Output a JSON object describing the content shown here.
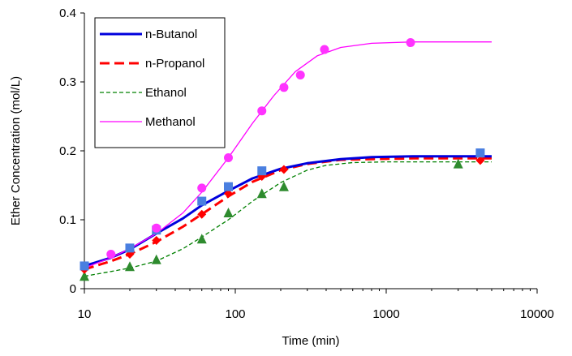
{
  "chart_data": {
    "type": "line",
    "xlabel": "Time (min)",
    "ylabel": "Ether Concentration (mol/L)",
    "xscale": "log",
    "xlim": [
      10,
      10000
    ],
    "ylim": [
      0,
      0.4
    ],
    "xticks": [
      "10",
      "100",
      "1000",
      "10000"
    ],
    "yticks": [
      "0",
      "0.1",
      "0.2",
      "0.3",
      "0.4"
    ],
    "grid": false,
    "legend_position": "top-left",
    "series": [
      {
        "name": "n-Butanol",
        "color": "#0000dd",
        "line_style": "solid-thick",
        "marker": "square",
        "marker_color": "#4a7fe0",
        "points": [
          [
            10,
            0.033
          ],
          [
            20,
            0.059
          ],
          [
            30,
            0.085
          ],
          [
            60,
            0.127
          ],
          [
            90,
            0.148
          ],
          [
            150,
            0.171
          ],
          [
            4200,
            0.197
          ]
        ],
        "curve": [
          [
            10,
            0.033
          ],
          [
            15,
            0.045
          ],
          [
            20,
            0.057
          ],
          [
            30,
            0.08
          ],
          [
            45,
            0.102
          ],
          [
            60,
            0.121
          ],
          [
            90,
            0.142
          ],
          [
            130,
            0.16
          ],
          [
            200,
            0.174
          ],
          [
            300,
            0.182
          ],
          [
            500,
            0.188
          ],
          [
            800,
            0.191
          ],
          [
            1500,
            0.192
          ],
          [
            3000,
            0.192
          ],
          [
            5000,
            0.192
          ]
        ]
      },
      {
        "name": "n-Propanol",
        "color": "#ff0000",
        "line_style": "dashed-thick",
        "marker": "diamond",
        "marker_color": "#ff0000",
        "points": [
          [
            10,
            0.028
          ],
          [
            20,
            0.05
          ],
          [
            30,
            0.07
          ],
          [
            60,
            0.108
          ],
          [
            90,
            0.138
          ],
          [
            150,
            0.163
          ],
          [
            210,
            0.173
          ],
          [
            4200,
            0.186
          ]
        ],
        "curve": [
          [
            10,
            0.028
          ],
          [
            15,
            0.04
          ],
          [
            20,
            0.05
          ],
          [
            30,
            0.068
          ],
          [
            45,
            0.09
          ],
          [
            60,
            0.108
          ],
          [
            90,
            0.134
          ],
          [
            130,
            0.155
          ],
          [
            200,
            0.172
          ],
          [
            300,
            0.181
          ],
          [
            500,
            0.187
          ],
          [
            800,
            0.188
          ],
          [
            1500,
            0.189
          ],
          [
            5000,
            0.189
          ]
        ]
      },
      {
        "name": "Ethanol",
        "color": "#008000",
        "line_style": "dashed-thin",
        "marker": "triangle",
        "marker_color": "#2e8b2e",
        "points": [
          [
            10,
            0.018
          ],
          [
            20,
            0.032
          ],
          [
            30,
            0.042
          ],
          [
            60,
            0.072
          ],
          [
            90,
            0.11
          ],
          [
            150,
            0.138
          ],
          [
            210,
            0.148
          ],
          [
            3000,
            0.181
          ]
        ],
        "curve": [
          [
            10,
            0.018
          ],
          [
            15,
            0.025
          ],
          [
            20,
            0.03
          ],
          [
            30,
            0.04
          ],
          [
            45,
            0.058
          ],
          [
            60,
            0.075
          ],
          [
            90,
            0.1
          ],
          [
            130,
            0.127
          ],
          [
            200,
            0.154
          ],
          [
            300,
            0.172
          ],
          [
            400,
            0.179
          ],
          [
            600,
            0.183
          ],
          [
            1000,
            0.184
          ],
          [
            5000,
            0.184
          ]
        ]
      },
      {
        "name": "Methanol",
        "color": "#ff00ff",
        "line_style": "solid-thin",
        "marker": "circle",
        "marker_color": "#ff33ff",
        "points": [
          [
            15,
            0.05
          ],
          [
            30,
            0.088
          ],
          [
            60,
            0.146
          ],
          [
            90,
            0.19
          ],
          [
            150,
            0.258
          ],
          [
            210,
            0.292
          ],
          [
            270,
            0.31
          ],
          [
            390,
            0.347
          ],
          [
            1450,
            0.357
          ]
        ],
        "curve": [
          [
            10,
            0.03
          ],
          [
            15,
            0.045
          ],
          [
            20,
            0.058
          ],
          [
            30,
            0.08
          ],
          [
            45,
            0.11
          ],
          [
            60,
            0.14
          ],
          [
            90,
            0.19
          ],
          [
            130,
            0.24
          ],
          [
            180,
            0.28
          ],
          [
            250,
            0.315
          ],
          [
            350,
            0.338
          ],
          [
            500,
            0.35
          ],
          [
            800,
            0.356
          ],
          [
            1500,
            0.358
          ],
          [
            5000,
            0.358
          ]
        ]
      }
    ]
  }
}
